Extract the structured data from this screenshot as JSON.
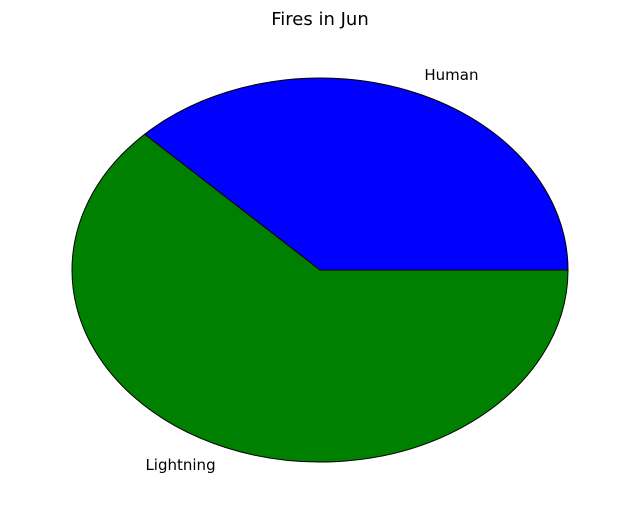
{
  "chart_data": {
    "type": "pie",
    "title": "Fires in Jun",
    "labels": [
      "Human",
      "Lightning"
    ],
    "values": [
      37.5,
      62.5
    ],
    "colors": [
      "#0000ff",
      "#008000"
    ],
    "start_angle_deg": 0,
    "direction": "counterclockwise",
    "legend": "none"
  }
}
